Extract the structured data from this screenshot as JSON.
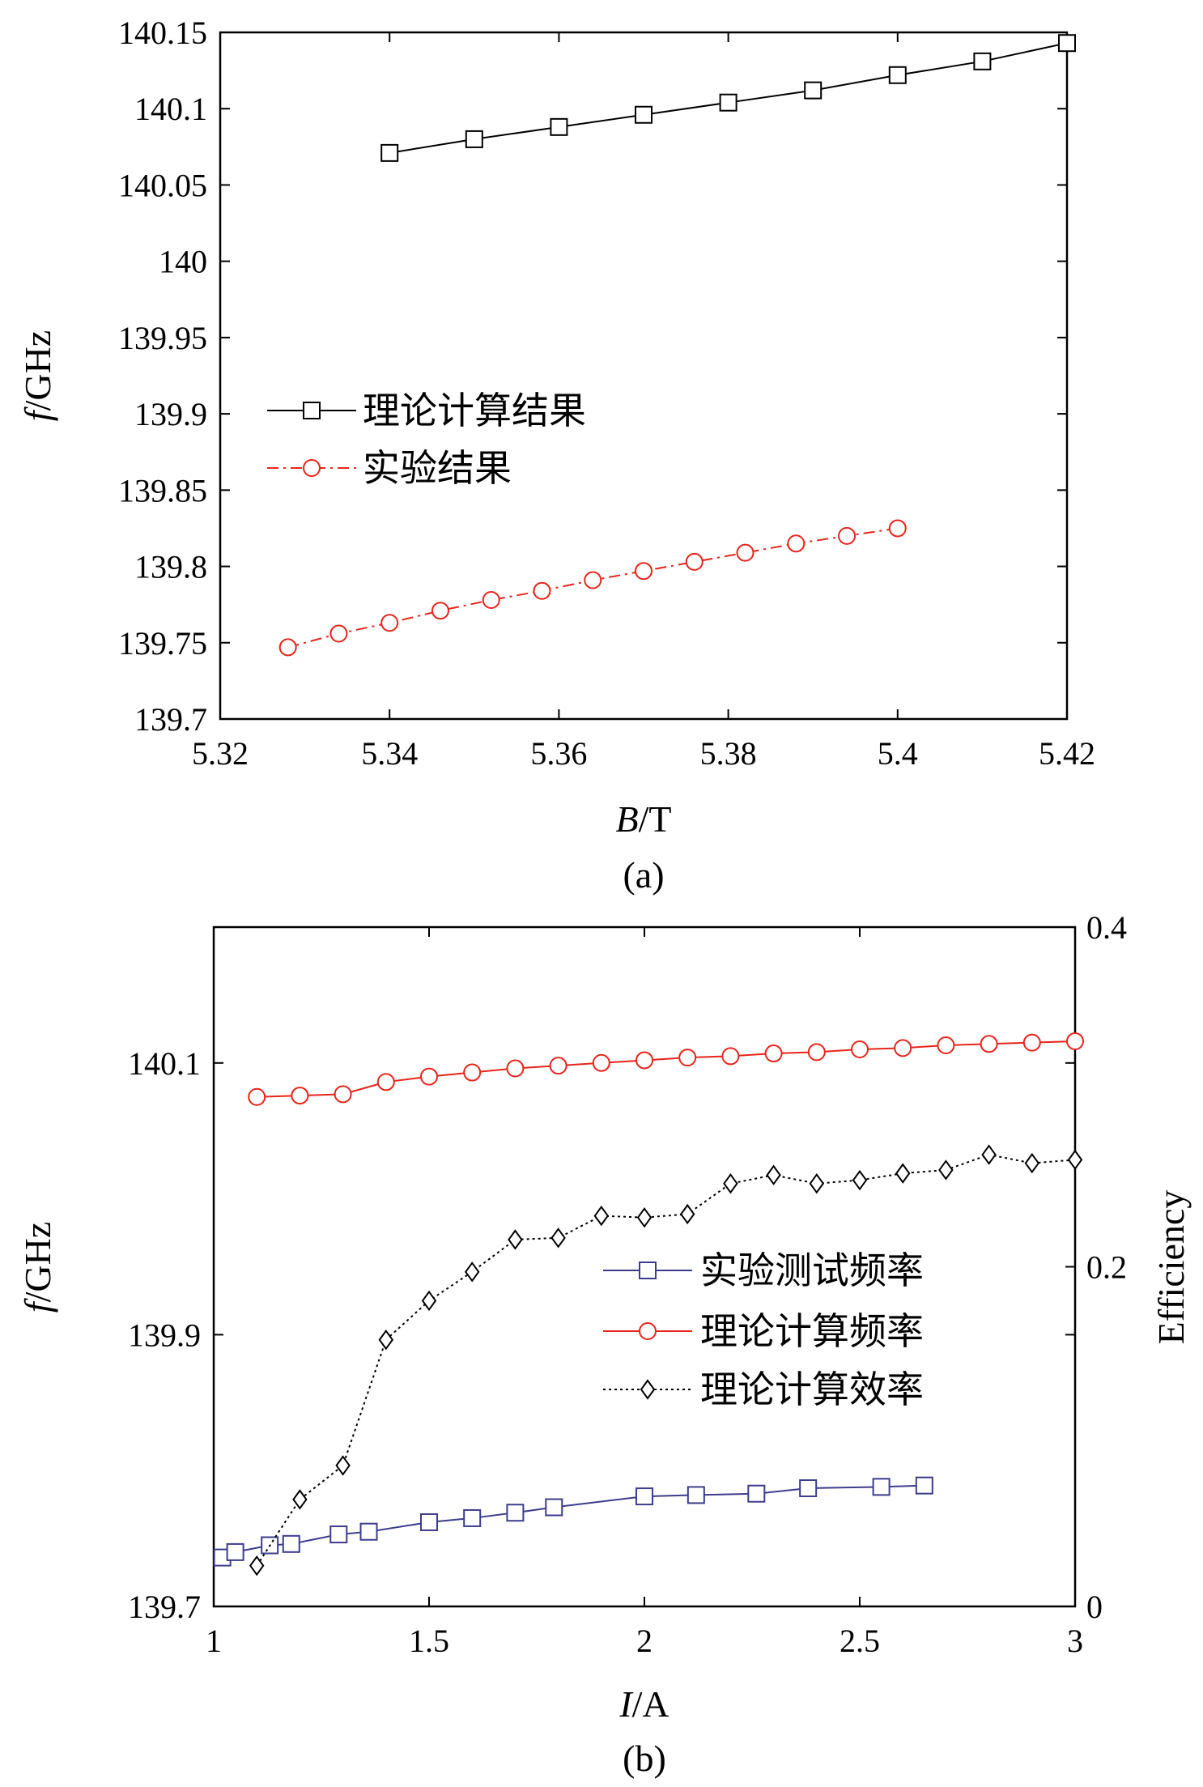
{
  "chart_data": [
    {
      "type": "line",
      "caption": "(a)",
      "xlabel_var": "B",
      "xlabel_unit": "/T",
      "ylabel_var": "f",
      "ylabel_unit": "/GHz",
      "xlim": [
        5.32,
        5.42
      ],
      "ylim": [
        139.7,
        140.15
      ],
      "xticks": [
        "5.32",
        "5.34",
        "5.36",
        "5.38",
        "5.4",
        "5.42"
      ],
      "yticks": [
        "139.7",
        "139.75",
        "139.8",
        "139.85",
        "139.9",
        "139.95",
        "140",
        "140.05",
        "140.1",
        "140.15"
      ],
      "legend_position": "middle-left",
      "series": [
        {
          "name": "理论计算结果",
          "color": "#000000",
          "marker": "square",
          "dash": "solid",
          "x": [
            5.34,
            5.35,
            5.36,
            5.37,
            5.38,
            5.39,
            5.4,
            5.41,
            5.42
          ],
          "y": [
            140.071,
            140.08,
            140.088,
            140.096,
            140.104,
            140.112,
            140.122,
            140.131,
            140.143
          ]
        },
        {
          "name": "实验结果",
          "color": "#e8241a",
          "marker": "circle",
          "dash": "dashdot",
          "x": [
            5.328,
            5.334,
            5.34,
            5.346,
            5.352,
            5.358,
            5.364,
            5.37,
            5.376,
            5.382,
            5.388,
            5.394,
            5.4
          ],
          "y": [
            139.747,
            139.756,
            139.763,
            139.771,
            139.778,
            139.784,
            139.791,
            139.797,
            139.803,
            139.809,
            139.815,
            139.82,
            139.825
          ]
        }
      ]
    },
    {
      "type": "line",
      "caption": "(b)",
      "xlabel_var": "I",
      "xlabel_unit": "/A",
      "ylabel_var": "f",
      "ylabel_unit": "/GHz",
      "y2label": "Efficiency",
      "xlim": [
        1,
        3
      ],
      "ylim": [
        139.7,
        140.2
      ],
      "y2lim": [
        0,
        0.4
      ],
      "xticks": [
        "1",
        "1.5",
        "2",
        "2.5",
        "3"
      ],
      "yticks": [
        "139.7",
        "139.9",
        "140.1"
      ],
      "y2ticks": [
        "0",
        "0.2",
        "0.4"
      ],
      "legend_position": "center-right",
      "series": [
        {
          "name": "实验测试频率",
          "color": "#3c3c8c",
          "marker": "square",
          "dash": "solid",
          "axis": "left",
          "x": [
            1.02,
            1.05,
            1.13,
            1.18,
            1.29,
            1.36,
            1.5,
            1.6,
            1.7,
            1.79,
            2.0,
            2.12,
            2.26,
            2.38,
            2.55,
            2.65
          ],
          "y": [
            139.736,
            139.74,
            139.745,
            139.746,
            139.753,
            139.755,
            139.762,
            139.765,
            139.769,
            139.773,
            139.781,
            139.782,
            139.783,
            139.787,
            139.788,
            139.789
          ]
        },
        {
          "name": "理论计算频率",
          "color": "#e8241a",
          "marker": "circle",
          "dash": "solid",
          "axis": "left",
          "x": [
            1.1,
            1.2,
            1.3,
            1.4,
            1.5,
            1.6,
            1.7,
            1.8,
            1.9,
            2.0,
            2.1,
            2.2,
            2.3,
            2.4,
            2.5,
            2.6,
            2.7,
            2.8,
            2.9,
            3.0
          ],
          "y": [
            140.075,
            140.076,
            140.077,
            140.086,
            140.09,
            140.093,
            140.096,
            140.098,
            140.1,
            140.102,
            140.104,
            140.105,
            140.107,
            140.108,
            140.11,
            140.111,
            140.113,
            140.114,
            140.115,
            140.116
          ]
        },
        {
          "name": "理论计算效率",
          "color": "#000000",
          "marker": "diamond",
          "dash": "dotted",
          "axis": "right",
          "x": [
            1.1,
            1.2,
            1.3,
            1.4,
            1.5,
            1.6,
            1.7,
            1.8,
            1.9,
            2.0,
            2.1,
            2.2,
            2.3,
            2.4,
            2.5,
            2.6,
            2.7,
            2.8,
            2.9,
            3.0
          ],
          "y": [
            0.024,
            0.063,
            0.083,
            0.157,
            0.18,
            0.197,
            0.216,
            0.217,
            0.23,
            0.229,
            0.231,
            0.249,
            0.254,
            0.249,
            0.251,
            0.255,
            0.257,
            0.266,
            0.261,
            0.263
          ]
        }
      ]
    }
  ]
}
